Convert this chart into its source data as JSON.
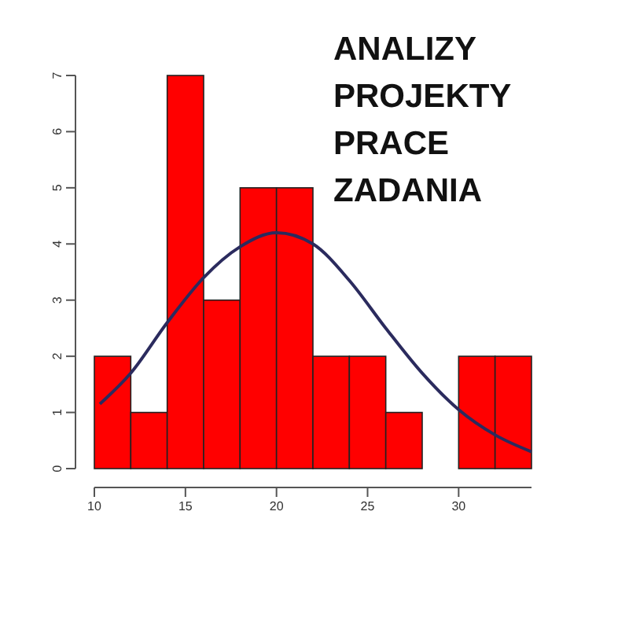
{
  "chart_data": {
    "type": "histogram",
    "bins": [
      10,
      12,
      14,
      16,
      18,
      20,
      22,
      24,
      26,
      28,
      30,
      32,
      34
    ],
    "values": [
      2,
      1,
      7,
      3,
      5,
      5,
      2,
      2,
      1,
      0,
      2,
      2
    ],
    "color": "#ff0000",
    "xlim": [
      10,
      34
    ],
    "xticks": [
      10,
      15,
      20,
      25,
      30
    ],
    "ylim": [
      0,
      7
    ],
    "yticks": [
      0,
      1,
      2,
      3,
      4,
      5,
      6,
      7
    ],
    "series": [
      {
        "type": "line",
        "color": "#2b2b5e",
        "x": [
          10.3,
          12,
          14,
          16,
          18,
          20,
          22,
          24,
          26,
          28,
          30,
          32,
          34
        ],
        "values": [
          1.15,
          1.7,
          2.6,
          3.4,
          3.95,
          4.2,
          4.0,
          3.35,
          2.5,
          1.7,
          1.05,
          0.6,
          0.3
        ]
      }
    ],
    "annotations": [
      "ANALIZY",
      "PROJEKTY",
      "PRACE",
      "ZADANIA"
    ]
  }
}
